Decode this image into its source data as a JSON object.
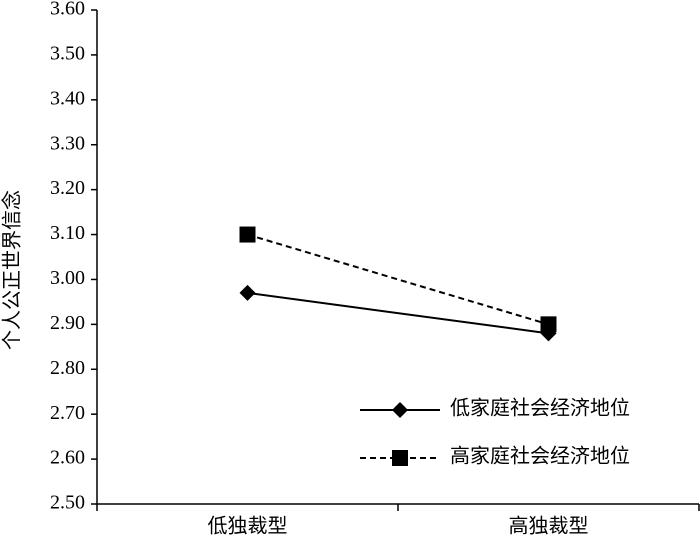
{
  "chart_data": {
    "type": "line",
    "y_label": "个人公正世界信念",
    "categories": [
      "低独裁型",
      "高独裁型"
    ],
    "series": [
      {
        "name": "低家庭社会经济地位",
        "color": "#000000",
        "dash": false,
        "marker": "diamond",
        "values": [
          2.97,
          2.88
        ]
      },
      {
        "name": "高家庭社会经济地位",
        "color": "#000000",
        "dash": true,
        "marker": "square",
        "values": [
          3.1,
          2.9
        ]
      }
    ],
    "ylim": [
      2.5,
      3.6
    ],
    "yticks": [
      {
        "value": 2.5,
        "label": "2.50"
      },
      {
        "value": 2.6,
        "label": "2.60"
      },
      {
        "value": 2.7,
        "label": "2.70"
      },
      {
        "value": 2.8,
        "label": "2.80"
      },
      {
        "value": 2.9,
        "label": "2.90"
      },
      {
        "value": 3.0,
        "label": "3.00"
      },
      {
        "value": 3.1,
        "label": "3.10"
      },
      {
        "value": 3.2,
        "label": "3.20"
      },
      {
        "value": 3.3,
        "label": "3.30"
      },
      {
        "value": 3.4,
        "label": "3.40"
      },
      {
        "value": 3.5,
        "label": "3.50"
      },
      {
        "value": 3.6,
        "label": "3.60"
      }
    ],
    "legend": "lower right"
  }
}
